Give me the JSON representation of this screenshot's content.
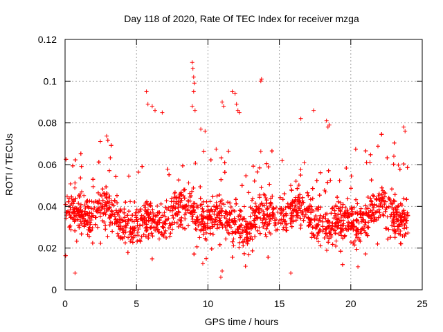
{
  "chart_data": {
    "type": "scatter",
    "title": "Day 118 of 2020, Rate Of TEC Index for receiver mzga",
    "xlabel": "GPS time / hours",
    "ylabel": "ROTI / TECUs",
    "xlim": [
      0,
      25
    ],
    "ylim": [
      0,
      0.12
    ],
    "xticks": [
      0,
      5,
      10,
      15,
      20,
      25
    ],
    "xtick_labels": [
      "0",
      "5",
      "10",
      "15",
      "20",
      "25"
    ],
    "yticks": [
      0,
      0.02,
      0.04,
      0.06,
      0.08,
      0.1,
      0.12
    ],
    "ytick_labels": [
      "0",
      "0.02",
      "0.04",
      "0.06",
      "0.08",
      "0.1",
      "0.12"
    ],
    "grid": true,
    "marker": "+",
    "color": "#ff0000",
    "series": [
      {
        "name": "ROTI",
        "x_range": [
          0,
          24
        ],
        "typical_range": [
          0.015,
          0.06
        ],
        "center": 0.035,
        "highlights": [
          {
            "x": 5.7,
            "y": 0.095
          },
          {
            "x": 5.8,
            "y": 0.089
          },
          {
            "x": 6.1,
            "y": 0.088
          },
          {
            "x": 6.3,
            "y": 0.086
          },
          {
            "x": 6.8,
            "y": 0.085
          },
          {
            "x": 8.9,
            "y": 0.109
          },
          {
            "x": 8.95,
            "y": 0.106
          },
          {
            "x": 9.0,
            "y": 0.102
          },
          {
            "x": 9.05,
            "y": 0.099
          },
          {
            "x": 9.0,
            "y": 0.095
          },
          {
            "x": 8.9,
            "y": 0.088
          },
          {
            "x": 9.1,
            "y": 0.086
          },
          {
            "x": 9.5,
            "y": 0.077
          },
          {
            "x": 9.8,
            "y": 0.076
          },
          {
            "x": 11.0,
            "y": 0.09
          },
          {
            "x": 11.1,
            "y": 0.088
          },
          {
            "x": 11.7,
            "y": 0.095
          },
          {
            "x": 11.9,
            "y": 0.094
          },
          {
            "x": 12.0,
            "y": 0.089
          },
          {
            "x": 12.1,
            "y": 0.086
          },
          {
            "x": 12.2,
            "y": 0.085
          },
          {
            "x": 13.7,
            "y": 0.1
          },
          {
            "x": 13.75,
            "y": 0.101
          },
          {
            "x": 16.5,
            "y": 0.082
          },
          {
            "x": 17.4,
            "y": 0.086
          },
          {
            "x": 18.3,
            "y": 0.081
          },
          {
            "x": 18.5,
            "y": 0.079
          },
          {
            "x": 18.4,
            "y": 0.078
          },
          {
            "x": 23.7,
            "y": 0.078
          },
          {
            "x": 23.8,
            "y": 0.076
          },
          {
            "x": 10.9,
            "y": 0.006
          },
          {
            "x": 11.0,
            "y": 0.009
          },
          {
            "x": 15.8,
            "y": 0.008
          },
          {
            "x": 0.7,
            "y": 0.008
          },
          {
            "x": 20.5,
            "y": 0.011
          }
        ]
      }
    ]
  }
}
